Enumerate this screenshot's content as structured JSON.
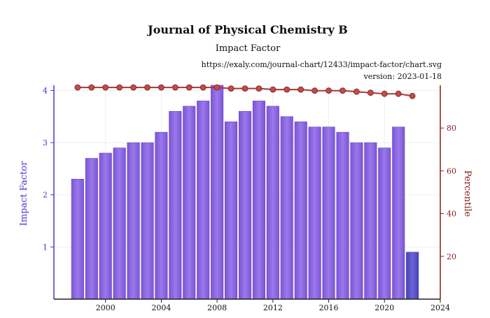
{
  "chart_data": {
    "type": "bar",
    "title": "Journal of Physical Chemistry B",
    "subtitle": "Impact Factor",
    "source_url": "https://exaly.com/journal-chart/12433/impact-factor/chart.svg",
    "version": "version: 2023-01-18",
    "xlabel": "",
    "x_ticks": [
      "2000",
      "2004",
      "2008",
      "2012",
      "2016",
      "2020",
      "2024"
    ],
    "xlim": [
      1996.3,
      2024
    ],
    "ylim_left": [
      0,
      4.1
    ],
    "ylim_right": [
      0,
      100
    ],
    "grid": true,
    "left_axis": {
      "label": "Impact Factor",
      "ticks": [
        "1",
        "2",
        "3",
        "4"
      ],
      "color": "#4b37d0"
    },
    "right_axis": {
      "label": "Percentile",
      "ticks": [
        "20",
        "40",
        "60",
        "80"
      ],
      "color": "#8b1a1a"
    },
    "bar_series": {
      "years": [
        1998,
        1999,
        2000,
        2001,
        2002,
        2003,
        2004,
        2005,
        2006,
        2007,
        2008,
        2009,
        2010,
        2011,
        2012,
        2013,
        2014,
        2015,
        2016,
        2017,
        2018,
        2019,
        2020,
        2021,
        2022
      ],
      "values": [
        2.3,
        2.7,
        2.8,
        2.9,
        3.0,
        3.0,
        3.2,
        3.6,
        3.7,
        3.8,
        4.1,
        3.4,
        3.6,
        3.8,
        3.7,
        3.5,
        3.4,
        3.3,
        3.3,
        3.2,
        3.0,
        3.0,
        2.9,
        3.3,
        0.9
      ],
      "color": "#8a63e0",
      "last_color": "#5b54c8"
    },
    "line_series": {
      "years": [
        1998,
        1999,
        2000,
        2001,
        2002,
        2003,
        2004,
        2005,
        2006,
        2007,
        2008,
        2009,
        2010,
        2011,
        2012,
        2013,
        2014,
        2015,
        2016,
        2017,
        2018,
        2019,
        2020,
        2021,
        2022
      ],
      "values": [
        99,
        99,
        99,
        99,
        99,
        99,
        99,
        99,
        99,
        99,
        99,
        98.5,
        98.5,
        98.5,
        98,
        98,
        98,
        97.5,
        97.5,
        97.5,
        97,
        96.5,
        96,
        96,
        95
      ],
      "color": "#a33a3a"
    }
  }
}
